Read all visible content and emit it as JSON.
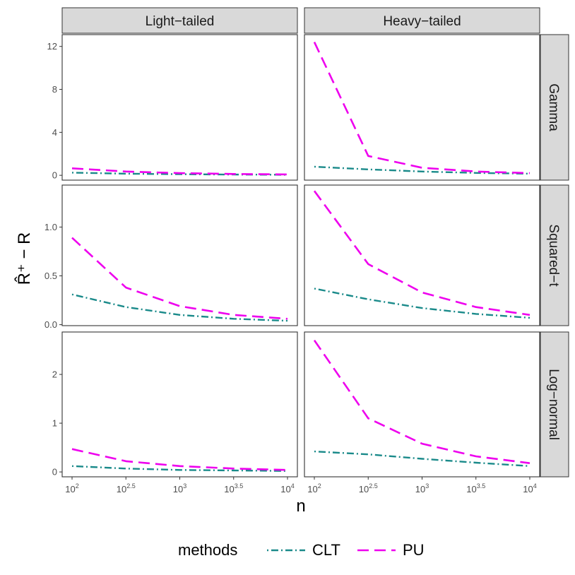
{
  "chart_data": {
    "type": "line",
    "facet_columns": [
      "Light−tailed",
      "Heavy−tailed"
    ],
    "facet_rows": [
      "Gamma",
      "Squared−t",
      "Log−normal"
    ],
    "xlabel": "n",
    "ylabel": "R̂⁺ − R",
    "x_scale": "log10",
    "x": [
      100,
      316.23,
      1000,
      3162.28,
      10000
    ],
    "x_tick_labels": [
      {
        "base": "10",
        "exp": "2"
      },
      {
        "base": "10",
        "exp": "2.5"
      },
      {
        "base": "10",
        "exp": "3"
      },
      {
        "base": "10",
        "exp": "3.5"
      },
      {
        "base": "10",
        "exp": "4"
      }
    ],
    "rows": [
      {
        "name": "Gamma",
        "ylim": [
          -0.45,
          13.1
        ],
        "yticks": [
          0,
          4,
          8,
          12
        ],
        "ytick_labels": [
          "0",
          "4",
          "8",
          "12"
        ],
        "panels": [
          {
            "series": [
              {
                "name": "CLT",
                "values": [
                  0.25,
                  0.15,
                  0.1,
                  0.07,
                  0.05
                ]
              },
              {
                "name": "PU",
                "values": [
                  0.65,
                  0.35,
                  0.2,
                  0.12,
                  0.08
                ]
              }
            ]
          },
          {
            "series": [
              {
                "name": "CLT",
                "values": [
                  0.8,
                  0.55,
                  0.35,
                  0.22,
                  0.15
                ]
              },
              {
                "name": "PU",
                "values": [
                  12.4,
                  1.8,
                  0.7,
                  0.35,
                  0.2
                ]
              }
            ]
          }
        ]
      },
      {
        "name": "Squared−t",
        "ylim": [
          -0.01,
          1.43
        ],
        "yticks": [
          0,
          0.5,
          1
        ],
        "ytick_labels": [
          "0.0",
          "0.5",
          "1.0"
        ],
        "panels": [
          {
            "series": [
              {
                "name": "CLT",
                "values": [
                  0.31,
                  0.18,
                  0.1,
                  0.06,
                  0.04
                ]
              },
              {
                "name": "PU",
                "values": [
                  0.89,
                  0.38,
                  0.19,
                  0.1,
                  0.06
                ]
              }
            ]
          },
          {
            "series": [
              {
                "name": "CLT",
                "values": [
                  0.37,
                  0.26,
                  0.17,
                  0.11,
                  0.07
                ]
              },
              {
                "name": "PU",
                "values": [
                  1.37,
                  0.62,
                  0.33,
                  0.18,
                  0.1
                ]
              }
            ]
          }
        ]
      },
      {
        "name": "Log−normal",
        "ylim": [
          -0.1,
          2.87
        ],
        "yticks": [
          0,
          1,
          2
        ],
        "ytick_labels": [
          "0",
          "1",
          "2"
        ],
        "panels": [
          {
            "series": [
              {
                "name": "CLT",
                "values": [
                  0.12,
                  0.07,
                  0.04,
                  0.03,
                  0.02
                ]
              },
              {
                "name": "PU",
                "values": [
                  0.47,
                  0.22,
                  0.12,
                  0.07,
                  0.04
                ]
              }
            ]
          },
          {
            "series": [
              {
                "name": "CLT",
                "values": [
                  0.42,
                  0.36,
                  0.27,
                  0.19,
                  0.12
                ]
              },
              {
                "name": "PU",
                "values": [
                  2.7,
                  1.1,
                  0.58,
                  0.32,
                  0.18
                ]
              }
            ]
          }
        ]
      }
    ],
    "legend": {
      "title": "methods",
      "position": "bottom",
      "entries": [
        {
          "name": "CLT",
          "color": "#1a8a8a",
          "linetype": "dotdash"
        },
        {
          "name": "PU",
          "color": "#ee00ee",
          "linetype": "longdash"
        }
      ]
    },
    "grid": false
  }
}
